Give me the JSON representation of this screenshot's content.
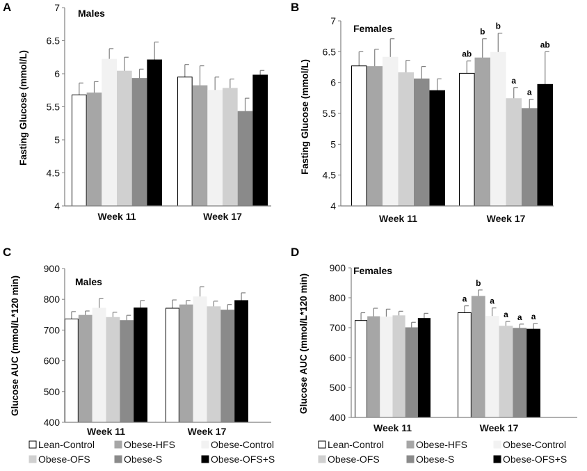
{
  "series_styles": [
    {
      "fill": "#ffffff",
      "stroke": "#000000"
    },
    {
      "fill": "#a6a6a6",
      "stroke": "#a6a6a6"
    },
    {
      "fill": "#f2f2f2",
      "stroke": "#f2f2f2"
    },
    {
      "fill": "#d0d0d0",
      "stroke": "#d0d0d0"
    },
    {
      "fill": "#8a8a8a",
      "stroke": "#8a8a8a"
    },
    {
      "fill": "#000000",
      "stroke": "#000000"
    }
  ],
  "chart_data": [
    {
      "panel": "A",
      "type": "bar",
      "title": "Males",
      "ylabel": "Fasting Glucose (mmol/L)",
      "xlabel": "",
      "ylim": [
        4,
        7
      ],
      "yticks": [
        "4",
        "4.5",
        "5",
        "5.5",
        "6",
        "6.5",
        "7"
      ],
      "categories": [
        "Week 11",
        "Week 17"
      ],
      "series": [
        {
          "name": "Lean-Control",
          "values": [
            5.68,
            5.95
          ],
          "errors": [
            0.18,
            0.19
          ]
        },
        {
          "name": "Obese-HFS",
          "values": [
            5.71,
            5.82
          ],
          "errors": [
            0.17,
            0.3
          ]
        },
        {
          "name": "Obese-Control",
          "values": [
            6.22,
            5.75
          ],
          "errors": [
            0.16,
            0.2
          ]
        },
        {
          "name": "Obese-OFS",
          "values": [
            6.04,
            5.78
          ],
          "errors": [
            0.21,
            0.14
          ]
        },
        {
          "name": "Obese-S",
          "values": [
            5.93,
            5.43
          ],
          "errors": [
            0.14,
            0.2
          ]
        },
        {
          "name": "Obese-OFS+S",
          "values": [
            6.21,
            5.98
          ],
          "errors": [
            0.27,
            0.07
          ]
        }
      ]
    },
    {
      "panel": "B",
      "type": "bar",
      "title": "Females",
      "ylabel": "Fasting Glucose  (mmol/L)",
      "xlabel": "",
      "ylim": [
        4,
        7
      ],
      "yticks": [
        "4",
        "4.5",
        "5",
        "5.5",
        "6",
        "6.5",
        "7"
      ],
      "categories": [
        "Week 11",
        "Week 17"
      ],
      "series": [
        {
          "name": "Lean-Control",
          "values": [
            6.27,
            6.15
          ],
          "errors": [
            0.23,
            0.2
          ],
          "labels": [
            "",
            "ab"
          ]
        },
        {
          "name": "Obese-HFS",
          "values": [
            6.26,
            6.4
          ],
          "errors": [
            0.28,
            0.31
          ],
          "labels": [
            "",
            "b"
          ]
        },
        {
          "name": "Obese-Control",
          "values": [
            6.41,
            6.49
          ],
          "errors": [
            0.3,
            0.31
          ],
          "labels": [
            "",
            "b"
          ]
        },
        {
          "name": "Obese-OFS",
          "values": [
            6.16,
            5.74
          ],
          "errors": [
            0.2,
            0.18
          ],
          "labels": [
            "",
            "a"
          ]
        },
        {
          "name": "Obese-S",
          "values": [
            6.06,
            5.58
          ],
          "errors": [
            0.2,
            0.15
          ],
          "labels": [
            "",
            "a"
          ]
        },
        {
          "name": "Obese-OFS+S",
          "values": [
            5.87,
            5.97
          ],
          "errors": [
            0.19,
            0.53
          ],
          "labels": [
            "",
            "ab"
          ]
        }
      ]
    },
    {
      "panel": "C",
      "type": "bar",
      "title": "Males",
      "ylabel": "Glucose AUC (mmol/L*120 min)",
      "xlabel": "",
      "ylim": [
        400,
        900
      ],
      "yticks": [
        "400",
        "500",
        "600",
        "700",
        "800",
        "900"
      ],
      "categories": [
        "Week 11",
        "Week 17"
      ],
      "series": [
        {
          "name": "Lean-Control",
          "values": [
            736,
            771
          ],
          "errors": [
            24,
            27
          ]
        },
        {
          "name": "Obese-HFS",
          "values": [
            748,
            782
          ],
          "errors": [
            14,
            14
          ]
        },
        {
          "name": "Obese-Control",
          "values": [
            771,
            808
          ],
          "errors": [
            31,
            33
          ]
        },
        {
          "name": "Obese-OFS",
          "values": [
            741,
            776
          ],
          "errors": [
            17,
            18
          ]
        },
        {
          "name": "Obese-S",
          "values": [
            731,
            765
          ],
          "errors": [
            17,
            18
          ]
        },
        {
          "name": "Obese-OFS+S",
          "values": [
            772,
            796
          ],
          "errors": [
            24,
            25
          ]
        }
      ],
      "legend": [
        "Lean-Control",
        "Obese-HFS",
        "Obese-Control",
        "Obese-OFS",
        "Obese-S",
        "Obese-OFS+S"
      ]
    },
    {
      "panel": "D",
      "type": "bar",
      "title": "Females",
      "ylabel": "Glucose AUC (mmol/L*120 min)",
      "xlabel": "",
      "ylim": [
        400,
        900
      ],
      "yticks": [
        "400",
        "500",
        "600",
        "700",
        "800",
        "900"
      ],
      "categories": [
        "Week 11",
        "Week 17"
      ],
      "series": [
        {
          "name": "Lean-Control",
          "values": [
            724,
            750
          ],
          "errors": [
            26,
            23
          ],
          "labels": [
            "",
            "a"
          ]
        },
        {
          "name": "Obese-HFS",
          "values": [
            737,
            805
          ],
          "errors": [
            28,
            21
          ],
          "labels": [
            "",
            "b"
          ]
        },
        {
          "name": "Obese-Control",
          "values": [
            736,
            738
          ],
          "errors": [
            26,
            28
          ],
          "labels": [
            "",
            "a"
          ]
        },
        {
          "name": "Obese-OFS",
          "values": [
            740,
            705
          ],
          "errors": [
            15,
            16
          ],
          "labels": [
            "",
            "a"
          ]
        },
        {
          "name": "Obese-S",
          "values": [
            700,
            698
          ],
          "errors": [
            18,
            14
          ],
          "labels": [
            "",
            "a"
          ]
        },
        {
          "name": "Obese-OFS+S",
          "values": [
            731,
            695
          ],
          "errors": [
            17,
            19
          ],
          "labels": [
            "",
            "a"
          ]
        }
      ],
      "legend": [
        "Lean-Control",
        "Obese-HFS",
        "Obese-Control",
        "Obese-OFS",
        "Obese-S",
        "Obese-OFS+S"
      ]
    }
  ]
}
